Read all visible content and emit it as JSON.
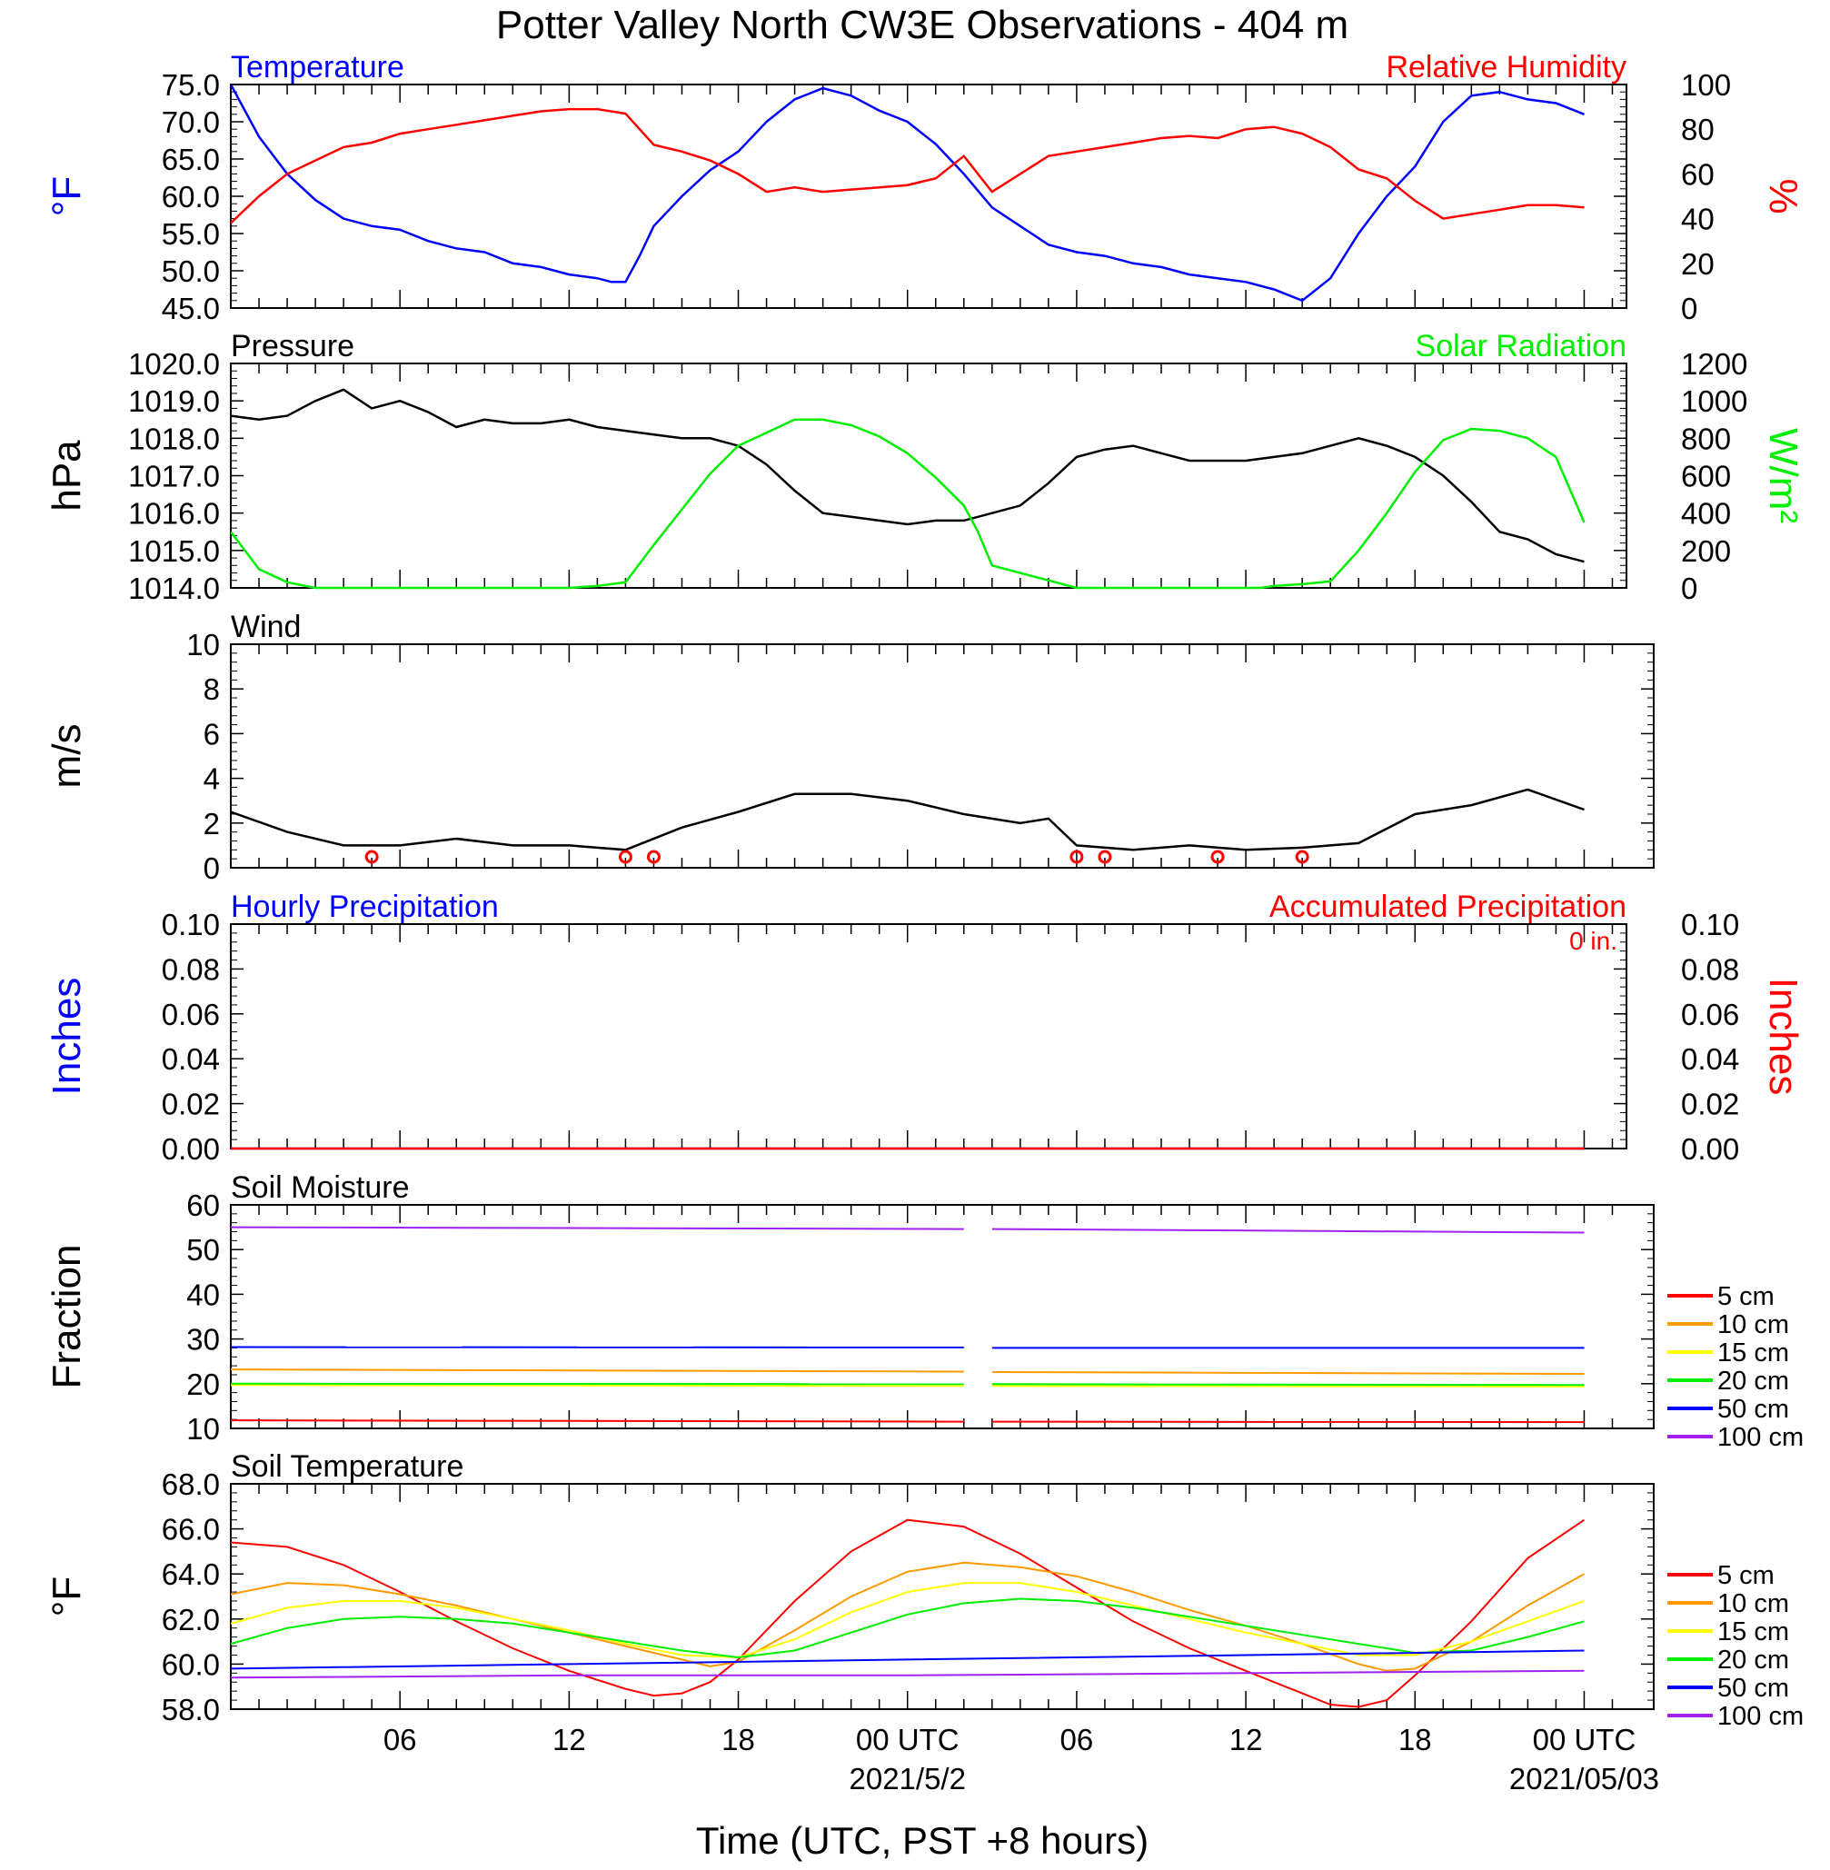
{
  "title": "Potter Valley North CW3E Observations - 404 m",
  "xlabel": "Time (UTC, PST +8 hours)",
  "x_ticks": [
    {
      "hour": 6,
      "label": "06"
    },
    {
      "hour": 12,
      "label": "12"
    },
    {
      "hour": 18,
      "label": "18"
    },
    {
      "hour": 24,
      "label": "00 UTC",
      "date": "2021/5/2"
    },
    {
      "hour": 30,
      "label": "06"
    },
    {
      "hour": 36,
      "label": "12"
    },
    {
      "hour": 42,
      "label": "18"
    },
    {
      "hour": 48,
      "label": "00 UTC",
      "date": "2021/05/03"
    }
  ],
  "colors": {
    "blue": "#0000ff",
    "red": "#ff0000",
    "green": "#00ee00",
    "black": "#000000",
    "orange": "#ff9900",
    "yellow": "#ffff00",
    "purple": "#a020f0"
  },
  "chart_data": [
    {
      "type": "line",
      "title_left": "Temperature",
      "title_right": "Relative Humidity",
      "ylabel_left": "°F",
      "ylabel_right": "%",
      "ylim_left": [
        45,
        75
      ],
      "ylim_right": [
        0,
        100
      ],
      "yticks_left": [
        "75.0",
        "70.0",
        "65.0",
        "60.0",
        "55.0",
        "50.0",
        "45.0"
      ],
      "yticks_right": [
        "100",
        "80",
        "60",
        "40",
        "20",
        "0"
      ],
      "series": [
        {
          "axis": "left",
          "color": "#0000ff",
          "x": [
            0,
            1,
            2,
            3,
            4,
            5,
            6,
            7,
            8,
            9,
            10,
            11,
            12,
            13,
            13.5,
            14,
            14.5,
            15,
            16,
            17,
            18,
            19,
            20,
            21,
            22,
            23,
            24,
            25,
            26,
            27,
            28,
            29,
            30,
            31,
            32,
            33,
            34,
            35,
            36,
            37,
            38,
            39,
            40,
            41,
            42,
            43,
            44,
            45,
            46,
            47,
            48
          ],
          "y": [
            75,
            68,
            63,
            59.5,
            57,
            56,
            55.5,
            54,
            53,
            52.5,
            51,
            50.5,
            49.5,
            49,
            48.5,
            48.5,
            52,
            56,
            60,
            63.5,
            66,
            70,
            73,
            74.5,
            73.5,
            71.5,
            70,
            67,
            63,
            58.5,
            56,
            53.5,
            52.5,
            52,
            51,
            50.5,
            49.5,
            49,
            48.5,
            47.5,
            46,
            49,
            55,
            60,
            64,
            70,
            73.5,
            74,
            73,
            72.5,
            71
          ]
        },
        {
          "axis": "right",
          "color": "#ff0000",
          "x": [
            0,
            1,
            2,
            3,
            4,
            5,
            6,
            7,
            8,
            9,
            10,
            11,
            12,
            13,
            14,
            15,
            16,
            17,
            18,
            19,
            20,
            21,
            22,
            23,
            24,
            25,
            26,
            27,
            28,
            29,
            30,
            31,
            32,
            33,
            34,
            35,
            36,
            37,
            38,
            39,
            40,
            41,
            42,
            43,
            44,
            45,
            46,
            47,
            48
          ],
          "y": [
            38,
            50,
            60,
            66,
            72,
            74,
            78,
            80,
            82,
            84,
            86,
            88,
            89,
            89,
            87,
            73,
            70,
            66,
            60,
            52,
            54,
            52,
            53,
            54,
            55,
            58,
            68,
            52,
            60,
            68,
            70,
            72,
            74,
            76,
            77,
            76,
            80,
            81,
            78,
            72,
            62,
            58,
            48,
            40,
            42,
            44,
            46,
            46,
            45
          ]
        }
      ]
    },
    {
      "type": "line",
      "title_left": "Pressure",
      "title_right": "Solar Radiation",
      "ylabel_left": "hPa",
      "ylabel_right": "W/m²",
      "ylim_left": [
        1014,
        1020
      ],
      "ylim_right": [
        0,
        1200
      ],
      "yticks_left": [
        "1020.0",
        "1019.0",
        "1018.0",
        "1017.0",
        "1016.0",
        "1015.0",
        "1014.0"
      ],
      "yticks_right": [
        "1200",
        "1000",
        "800",
        "600",
        "400",
        "200",
        "0"
      ],
      "series": [
        {
          "axis": "left",
          "color": "#000000",
          "x": [
            0,
            1,
            2,
            3,
            4,
            5,
            6,
            7,
            8,
            9,
            10,
            11,
            12,
            13,
            14,
            15,
            16,
            17,
            18,
            19,
            20,
            21,
            22,
            23,
            24,
            25,
            26,
            27,
            28,
            29,
            30,
            31,
            32,
            33,
            34,
            35,
            36,
            37,
            38,
            39,
            40,
            41,
            42,
            43,
            44,
            45,
            46,
            47,
            48
          ],
          "y": [
            1018.6,
            1018.5,
            1018.6,
            1019.0,
            1019.3,
            1018.8,
            1019.0,
            1018.7,
            1018.3,
            1018.5,
            1018.4,
            1018.4,
            1018.5,
            1018.3,
            1018.2,
            1018.1,
            1018.0,
            1018.0,
            1017.8,
            1017.3,
            1016.6,
            1016.0,
            1015.9,
            1015.8,
            1015.7,
            1015.8,
            1015.8,
            1016.0,
            1016.2,
            1016.8,
            1017.5,
            1017.7,
            1017.8,
            1017.6,
            1017.4,
            1017.4,
            1017.4,
            1017.5,
            1017.6,
            1017.8,
            1018.0,
            1017.8,
            1017.5,
            1017.0,
            1016.3,
            1015.5,
            1015.3,
            1014.9,
            1014.7
          ]
        },
        {
          "axis": "right",
          "color": "#00ee00",
          "x": [
            0,
            0.5,
            1,
            2,
            3,
            6,
            9,
            12,
            13,
            13.5,
            14,
            15,
            16,
            17,
            18,
            19,
            20,
            21,
            22,
            23,
            24,
            25,
            26,
            26.5,
            27,
            30,
            33,
            36,
            36.5,
            37,
            38,
            39,
            40,
            41,
            42,
            43,
            44,
            45,
            46,
            47,
            48
          ],
          "y": [
            300,
            200,
            100,
            30,
            0,
            0,
            0,
            0,
            10,
            20,
            30,
            230,
            420,
            610,
            760,
            830,
            900,
            900,
            870,
            810,
            720,
            590,
            440,
            300,
            120,
            0,
            0,
            0,
            0,
            10,
            20,
            35,
            200,
            400,
            620,
            790,
            850,
            840,
            800,
            700,
            350
          ]
        }
      ]
    },
    {
      "type": "line",
      "title_left": "Wind",
      "ylabel_left": "m/s",
      "ylim_left": [
        0,
        10
      ],
      "yticks_left": [
        "10",
        "8",
        "6",
        "4",
        "2",
        "0"
      ],
      "series": [
        {
          "axis": "left",
          "color": "#000000",
          "x": [
            0,
            2,
            4,
            6,
            8,
            10,
            12,
            14,
            16,
            18,
            20,
            22,
            24,
            26,
            28,
            29,
            30,
            32,
            34,
            36,
            38,
            40,
            42,
            44,
            46,
            48
          ],
          "y": [
            2.5,
            1.6,
            1.0,
            1.0,
            1.3,
            1.0,
            1.0,
            0.8,
            1.8,
            2.5,
            3.3,
            3.3,
            3.0,
            2.4,
            2.0,
            2.2,
            1.0,
            0.8,
            1.0,
            0.8,
            0.9,
            1.1,
            2.4,
            2.8,
            3.5,
            2.6
          ]
        }
      ],
      "calm_hours": [
        4,
        13,
        14,
        29,
        30,
        34,
        37
      ]
    },
    {
      "type": "line",
      "title_left": "Hourly Precipitation",
      "title_right": "Accumulated Precipitation",
      "annotation": "0 in.",
      "ylabel_left": "Inches",
      "ylabel_right": "Inches",
      "ylim_left": [
        0,
        0.1
      ],
      "yticks_left": [
        "0.10",
        "0.08",
        "0.06",
        "0.04",
        "0.02",
        "0.00"
      ],
      "yticks_right": [
        "0.10",
        "0.08",
        "0.06",
        "0.04",
        "0.02",
        "0.00"
      ],
      "series": [
        {
          "axis": "left",
          "color": "#0000ff",
          "x": [
            0,
            48
          ],
          "y": [
            0,
            0
          ]
        },
        {
          "axis": "right",
          "color": "#ff0000",
          "x": [
            0,
            48
          ],
          "y": [
            0,
            0
          ]
        }
      ]
    },
    {
      "type": "line",
      "title_left": "Soil Moisture",
      "ylabel_left": "Fraction",
      "ylim_left": [
        10,
        60
      ],
      "yticks_left": [
        "60",
        "50",
        "40",
        "30",
        "20",
        "10"
      ],
      "legend": [
        "5 cm",
        "10 cm",
        "15 cm",
        "20 cm",
        "50 cm",
        "100 cm"
      ],
      "gap_hours": [
        26,
        27
      ],
      "series": [
        {
          "name": "5 cm",
          "color": "#ff0000",
          "x": [
            0,
            26,
            27,
            48
          ],
          "y": [
            11.8,
            11.5,
            11.5,
            11.4
          ]
        },
        {
          "name": "10 cm",
          "color": "#ff9900",
          "x": [
            0,
            26,
            27,
            48
          ],
          "y": [
            23.2,
            22.7,
            22.6,
            22.2
          ]
        },
        {
          "name": "15 cm",
          "color": "#ffff00",
          "x": [
            0,
            26,
            27,
            48
          ],
          "y": [
            19.7,
            19.5,
            19.5,
            19.4
          ]
        },
        {
          "name": "20 cm",
          "color": "#00ee00",
          "x": [
            0,
            26,
            27,
            48
          ],
          "y": [
            20.0,
            19.9,
            19.9,
            19.7
          ]
        },
        {
          "name": "50 cm",
          "color": "#0000ff",
          "x": [
            0,
            26,
            27,
            48
          ],
          "y": [
            28.2,
            28.1,
            28.0,
            28.0
          ]
        },
        {
          "name": "100 cm",
          "color": "#a020f0",
          "x": [
            0,
            26,
            27,
            48
          ],
          "y": [
            55.0,
            54.6,
            54.6,
            53.8
          ]
        }
      ]
    },
    {
      "type": "line",
      "title_left": "Soil Temperature",
      "ylabel_left": "°F",
      "ylim_left": [
        58,
        68
      ],
      "yticks_left": [
        "68.0",
        "66.0",
        "64.0",
        "62.0",
        "60.0",
        "58.0"
      ],
      "legend": [
        "5 cm",
        "10 cm",
        "15 cm",
        "20 cm",
        "50 cm",
        "100 cm"
      ],
      "series": [
        {
          "name": "5 cm",
          "color": "#ff0000",
          "x": [
            0,
            2,
            4,
            6,
            8,
            10,
            12,
            14,
            15,
            16,
            17,
            18,
            20,
            22,
            24,
            26,
            28,
            30,
            32,
            34,
            36,
            38,
            39,
            40,
            41,
            42,
            44,
            46,
            48
          ],
          "y": [
            65.4,
            65.2,
            64.4,
            63.2,
            61.9,
            60.7,
            59.7,
            58.9,
            58.6,
            58.7,
            59.2,
            60.2,
            62.8,
            65.0,
            66.4,
            66.1,
            64.9,
            63.4,
            61.9,
            60.7,
            59.7,
            58.7,
            58.2,
            58.1,
            58.4,
            59.5,
            61.9,
            64.7,
            66.4
          ]
        },
        {
          "name": "10 cm",
          "color": "#ff9900",
          "x": [
            0,
            2,
            4,
            6,
            8,
            10,
            12,
            14,
            16,
            17,
            18,
            20,
            22,
            24,
            26,
            28,
            30,
            32,
            34,
            36,
            38,
            40,
            41,
            42,
            44,
            46,
            48
          ],
          "y": [
            63.1,
            63.6,
            63.5,
            63.1,
            62.6,
            62.0,
            61.4,
            60.8,
            60.2,
            59.9,
            60.1,
            61.5,
            63.0,
            64.1,
            64.5,
            64.3,
            63.9,
            63.2,
            62.4,
            61.7,
            60.9,
            60.0,
            59.7,
            59.8,
            61.0,
            62.6,
            64.0
          ]
        },
        {
          "name": "15 cm",
          "color": "#ffff00",
          "x": [
            0,
            2,
            4,
            6,
            8,
            10,
            12,
            14,
            16,
            18,
            20,
            22,
            24,
            26,
            28,
            30,
            32,
            34,
            36,
            38,
            40,
            42,
            44,
            46,
            48
          ],
          "y": [
            61.8,
            62.5,
            62.8,
            62.8,
            62.5,
            62.0,
            61.5,
            60.9,
            60.4,
            60.3,
            61.1,
            62.3,
            63.2,
            63.6,
            63.6,
            63.2,
            62.6,
            62.0,
            61.4,
            60.9,
            60.4,
            60.4,
            61.0,
            61.9,
            62.8
          ]
        },
        {
          "name": "20 cm",
          "color": "#00ee00",
          "x": [
            0,
            2,
            4,
            6,
            8,
            10,
            12,
            14,
            16,
            18,
            20,
            22,
            24,
            26,
            28,
            30,
            32,
            34,
            36,
            38,
            40,
            42,
            44,
            46,
            48
          ],
          "y": [
            60.9,
            61.6,
            62.0,
            62.1,
            62.0,
            61.8,
            61.4,
            61.0,
            60.6,
            60.3,
            60.6,
            61.4,
            62.2,
            62.7,
            62.9,
            62.8,
            62.5,
            62.1,
            61.7,
            61.3,
            60.9,
            60.5,
            60.6,
            61.2,
            61.9
          ]
        },
        {
          "name": "50 cm",
          "color": "#0000ff",
          "x": [
            0,
            12,
            24,
            36,
            48
          ],
          "y": [
            59.8,
            60.0,
            60.2,
            60.4,
            60.6
          ]
        },
        {
          "name": "100 cm",
          "color": "#a020f0",
          "x": [
            0,
            12,
            24,
            36,
            48
          ],
          "y": [
            59.4,
            59.5,
            59.5,
            59.6,
            59.7
          ]
        }
      ]
    }
  ]
}
